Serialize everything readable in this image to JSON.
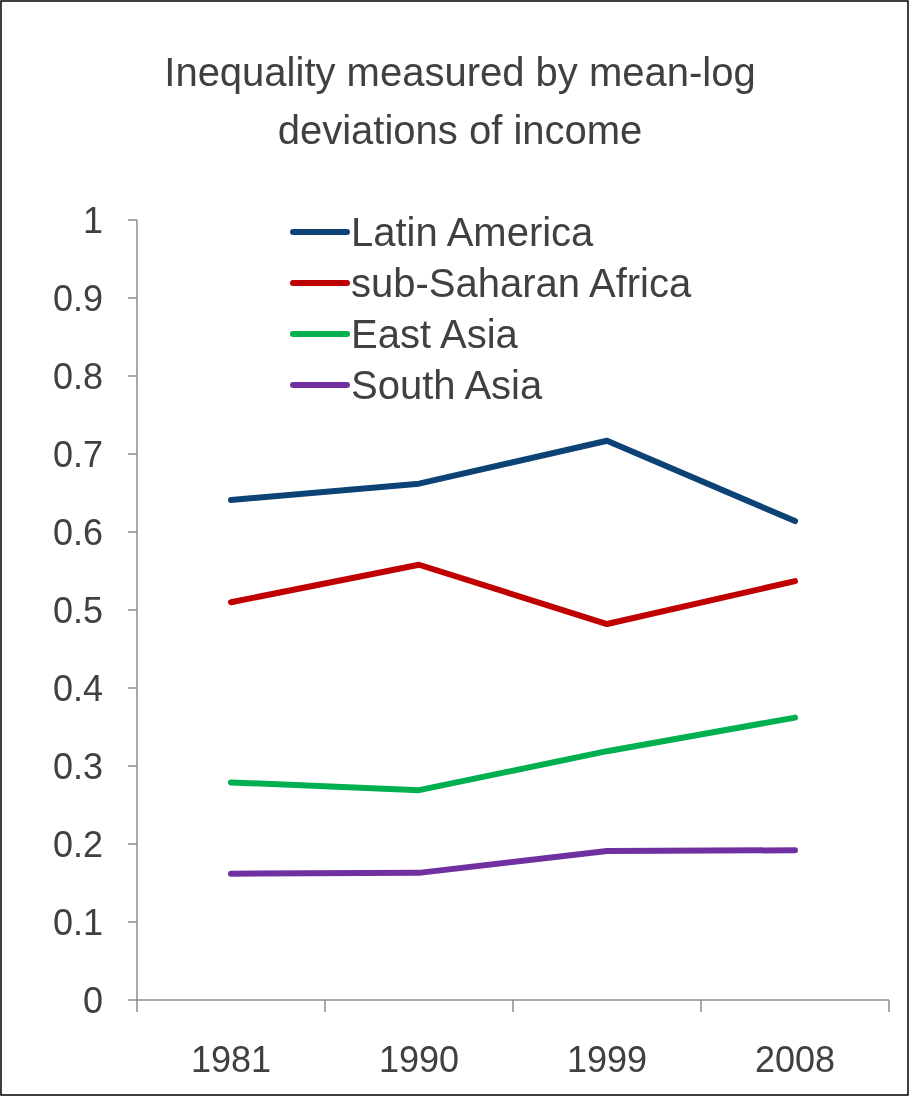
{
  "chart_data": {
    "type": "line",
    "title": "Inequality measured by mean-log deviations of income",
    "categories": [
      "1981",
      "1990",
      "1999",
      "2008"
    ],
    "series": [
      {
        "name": "Latin America",
        "color": "#0d4275",
        "values": [
          0.641,
          0.662,
          0.717,
          0.614
        ]
      },
      {
        "name": "sub-Saharan Africa",
        "color": "#c00000",
        "values": [
          0.51,
          0.558,
          0.482,
          0.537
        ]
      },
      {
        "name": "East Asia",
        "color": "#00b050",
        "values": [
          0.279,
          0.269,
          0.319,
          0.362
        ]
      },
      {
        "name": "South Asia",
        "color": "#7030a0",
        "values": [
          0.162,
          0.163,
          0.191,
          0.192
        ]
      }
    ],
    "ylim": [
      0,
      1
    ],
    "yticks": [
      0,
      0.1,
      0.2,
      0.3,
      0.4,
      0.5,
      0.6,
      0.7,
      0.8,
      0.9,
      1
    ],
    "grid": false,
    "legend": "top"
  }
}
